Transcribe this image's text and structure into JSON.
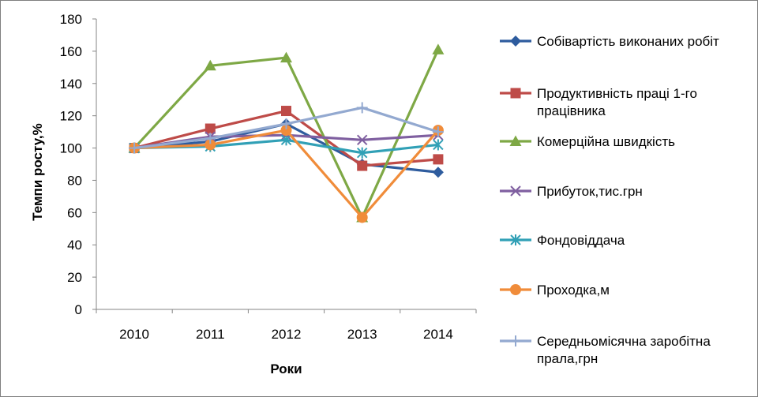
{
  "chart_data": {
    "type": "line",
    "title": "",
    "xlabel": "Роки",
    "ylabel": "Темпи росту,%",
    "categories": [
      "2010",
      "2011",
      "2012",
      "2013",
      "2014"
    ],
    "ylim": [
      0,
      180
    ],
    "yticks": [
      0,
      20,
      40,
      60,
      80,
      100,
      120,
      140,
      160,
      180
    ],
    "grid": false,
    "legend_position": "right",
    "series": [
      {
        "name": "Собівартість виконаних робіт",
        "values": [
          100,
          104,
          115,
          90,
          85
        ],
        "color": "#2E5C9E",
        "marker": "diamond"
      },
      {
        "name": "Продуктивність праці 1-го працівника",
        "values": [
          100,
          112,
          123,
          89,
          93
        ],
        "color": "#BE4B48",
        "marker": "square"
      },
      {
        "name": "Комерційна швидкість",
        "values": [
          100,
          151,
          156,
          57,
          161
        ],
        "color": "#7EA845",
        "marker": "triangle"
      },
      {
        "name": "Прибуток,тис.грн",
        "values": [
          100,
          107,
          108,
          105,
          108
        ],
        "color": "#7F5FA0",
        "marker": "x"
      },
      {
        "name": "Фондовіддача",
        "values": [
          100,
          101,
          105,
          97,
          102
        ],
        "color": "#31A0B6",
        "marker": "star"
      },
      {
        "name": "Проходка,м",
        "values": [
          100,
          102,
          111,
          57,
          111
        ],
        "color": "#F08C3A",
        "marker": "circle"
      },
      {
        "name": "Середньомісячна заробітна прала,грн",
        "values": [
          100,
          106,
          115,
          125,
          110
        ],
        "color": "#93A9D0",
        "marker": "plus"
      }
    ]
  }
}
